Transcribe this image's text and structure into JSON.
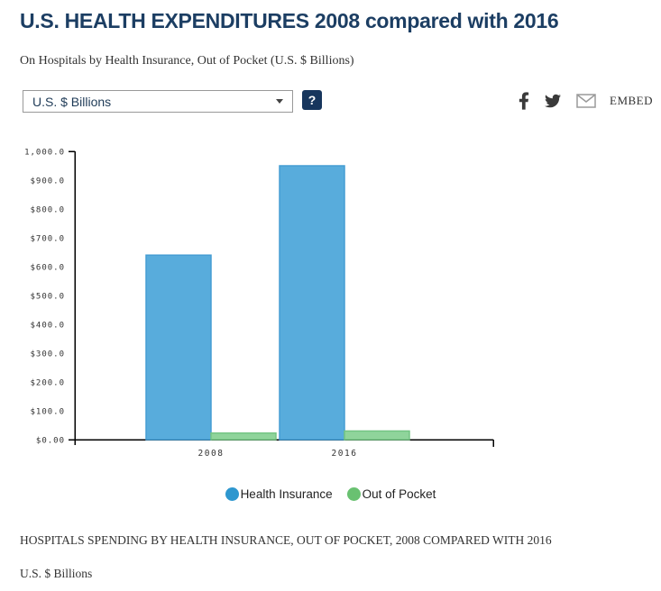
{
  "header": {
    "title": "U.S. HEALTH EXPENDITURES 2008 compared with 2016",
    "subtitle": "On Hospitals by Health Insurance, Out of Pocket (U.S. $ Billions)"
  },
  "controls": {
    "units_select_value": "U.S. $ Billions",
    "help_label": "?",
    "embed_label": "EMBED",
    "icons": {
      "facebook": "facebook-icon",
      "twitter": "twitter-icon",
      "email": "email-envelope-icon"
    }
  },
  "chart_data": {
    "type": "bar",
    "categories": [
      "2008",
      "2016"
    ],
    "series": [
      {
        "name": "Health Insurance",
        "values": [
          640,
          950
        ],
        "fill": "#58acdc",
        "stroke": "#459dd3",
        "legend_color": "#2e97cf"
      },
      {
        "name": "Out of Pocket",
        "values": [
          23,
          30
        ],
        "fill": "#8fd49b",
        "stroke": "#74c584",
        "legend_color": "#69c171"
      }
    ],
    "ylabel": "U.S. $ Billions",
    "ylim": [
      0,
      1000
    ],
    "y_tick_labels": [
      "$0.00",
      "$100.0",
      "$200.0",
      "$300.0",
      "$400.0",
      "$500.0",
      "$600.0",
      "$700.0",
      "$800.0",
      "$900.0",
      "1,000.0"
    ],
    "grid": false,
    "legend_position": "bottom"
  },
  "footer": {
    "caption": "HOSPITALS SPENDING BY HEALTH INSURANCE, OUT OF POCKET, 2008 COMPARED WITH 2016",
    "units": "U.S. $ Billions"
  }
}
